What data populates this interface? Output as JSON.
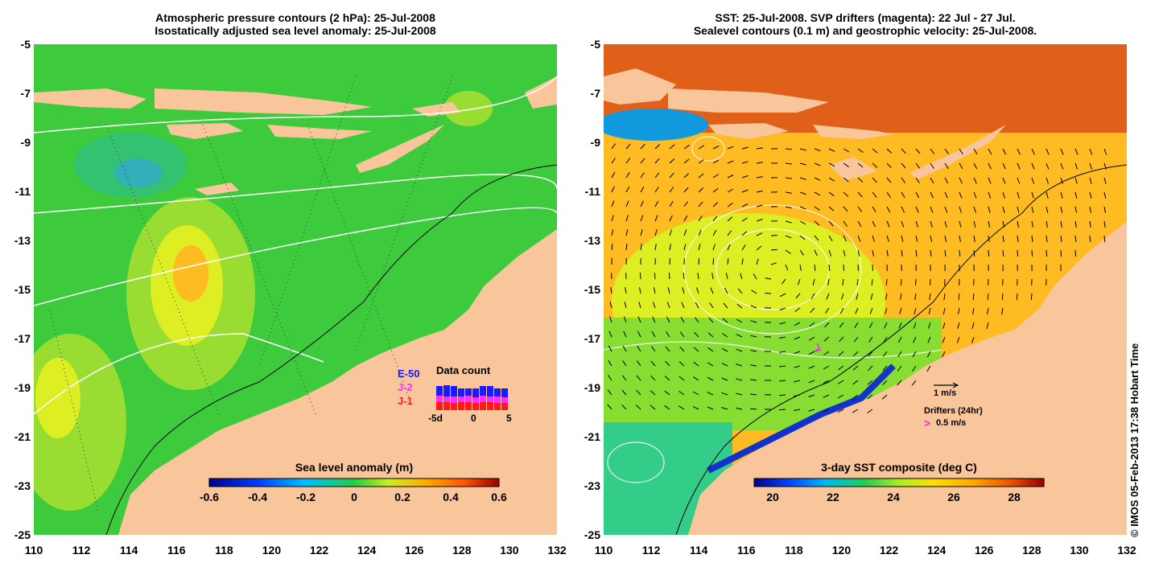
{
  "left_panel": {
    "title_line1": "Atmospheric pressure contours (2 hPa): 25-Jul-2008",
    "title_line2": "Isostatically adjusted sea level anomaly: 25-Jul-2008",
    "colorbar": {
      "title": "Sea level anomaly (m)",
      "ticks": [
        "-0.6",
        "-0.4",
        "-0.2",
        "0",
        "0.2",
        "0.4",
        "0.6"
      ]
    },
    "data_count": {
      "title": "Data count",
      "legend": [
        "E-50",
        "J-2",
        "J-1"
      ],
      "x_ticks": [
        "-5d",
        "0",
        "5"
      ],
      "colors": {
        "E-50": "#1a1aff",
        "J-2": "#ff2bff",
        "J-1": "#ff1a1a"
      }
    }
  },
  "right_panel": {
    "title_line1": "SST: 25-Jul-2008. SVP drifters (magenta): 22 Jul - 27 Jul.",
    "title_line2": "Sealevel contours (0.1 m) and geostrophic velocity: 25-Jul-2008.",
    "colorbar": {
      "title": "3-day SST composite (deg C)",
      "ticks": [
        "20",
        "22",
        "24",
        "26",
        "28"
      ]
    },
    "velocity_key": "1 m/s",
    "drifters_label": "Drifters (24hr)",
    "drifter_speed": "0.5 m/s"
  },
  "axes": {
    "y_ticks": [
      "-5",
      "-7",
      "-9",
      "-11",
      "-13",
      "-15",
      "-17",
      "-19",
      "-21",
      "-23",
      "-25"
    ],
    "x_ticks": [
      "110",
      "112",
      "114",
      "116",
      "118",
      "120",
      "122",
      "124",
      "126",
      "128",
      "130",
      "132"
    ]
  },
  "credit": "© IMOS 05-Feb-2013 17:38 Hobart Time",
  "colors": {
    "land": "#f9c59b",
    "sla_background": "#3fcf3f",
    "sst_background": "#ffcc22"
  }
}
